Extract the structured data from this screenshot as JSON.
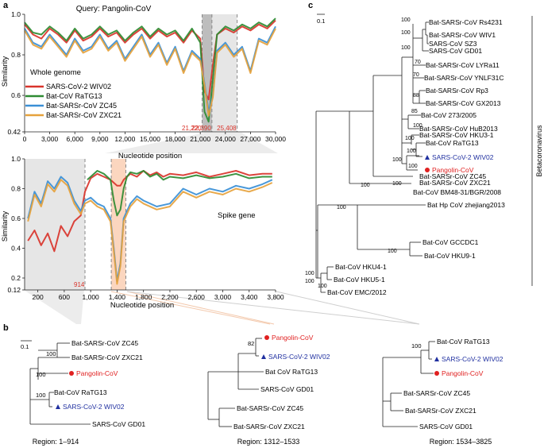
{
  "panel_labels": {
    "a": "a",
    "b": "b",
    "c": "c"
  },
  "colors": {
    "sars2": "#d9342b",
    "ratg13": "#2e8b32",
    "zc45": "#3a8fd6",
    "zxc21": "#e6a23c",
    "marker_red": "#e02020",
    "marker_blue": "#2030a0",
    "region_red": "#d9342b",
    "shade_grey": "#e6e6e6",
    "shade_dark": "#bdbdbd",
    "shade_orange": "#fbd6bf"
  },
  "chart_data": [
    {
      "type": "line",
      "title": "Query: Pangolin-CoV",
      "subtitle": "Whole genome",
      "xlabel": "Nucleotide position",
      "ylabel": "Similarity",
      "xlim": [
        0,
        30000
      ],
      "ylim": [
        0.42,
        1.0
      ],
      "xticks": [
        0,
        3000,
        6000,
        9000,
        12000,
        15000,
        18000,
        21000,
        24000,
        27000,
        30000
      ],
      "xtick_labels": [
        "0",
        "3,000",
        "6,000",
        "9,000",
        "12,000",
        "15,000",
        "18,000",
        "21,000",
        "24,000",
        "27,000",
        "30,000"
      ],
      "yticks": [
        0.42,
        0.6,
        0.8,
        1.0
      ],
      "ytick_labels": [
        "0.42",
        "0.6",
        "0.8",
        "1.0"
      ],
      "region_markers": [
        21220,
        22390,
        25408
      ],
      "region_marker_labels": [
        "21,220",
        "22,390",
        "25,408"
      ],
      "series": [
        {
          "name": "SARS-CoV-2 WIV02",
          "color_key": "sars2",
          "x": [
            0,
            1000,
            2000,
            3000,
            4000,
            5000,
            6000,
            7000,
            8000,
            9000,
            10000,
            11000,
            12000,
            13000,
            14000,
            15000,
            16000,
            17000,
            18000,
            19000,
            20000,
            21000,
            21500,
            22000,
            22500,
            23000,
            24000,
            25000,
            26000,
            27000,
            28000,
            29000,
            30000
          ],
          "values": [
            0.95,
            0.9,
            0.88,
            0.93,
            0.9,
            0.86,
            0.92,
            0.87,
            0.89,
            0.93,
            0.89,
            0.91,
            0.86,
            0.9,
            0.93,
            0.88,
            0.92,
            0.89,
            0.91,
            0.86,
            0.92,
            0.88,
            0.62,
            0.58,
            0.75,
            0.9,
            0.93,
            0.91,
            0.94,
            0.92,
            0.95,
            0.93,
            0.97
          ]
        },
        {
          "name": "Bat-CoV RaTG13",
          "color_key": "ratg13",
          "x": [
            0,
            1000,
            2000,
            3000,
            4000,
            5000,
            6000,
            7000,
            8000,
            9000,
            10000,
            11000,
            12000,
            13000,
            14000,
            15000,
            16000,
            17000,
            18000,
            19000,
            20000,
            21000,
            21500,
            22000,
            22500,
            23000,
            24000,
            25000,
            26000,
            27000,
            28000,
            29000,
            30000
          ],
          "values": [
            0.96,
            0.91,
            0.9,
            0.94,
            0.91,
            0.87,
            0.93,
            0.88,
            0.9,
            0.94,
            0.9,
            0.92,
            0.87,
            0.91,
            0.94,
            0.89,
            0.93,
            0.9,
            0.92,
            0.87,
            0.93,
            0.86,
            0.52,
            0.47,
            0.68,
            0.9,
            0.94,
            0.92,
            0.95,
            0.93,
            0.96,
            0.94,
            0.98
          ]
        },
        {
          "name": "Bat-SARSr-CoV ZC45",
          "color_key": "zc45",
          "x": [
            0,
            1000,
            2000,
            3000,
            4000,
            5000,
            6000,
            7000,
            8000,
            9000,
            10000,
            11000,
            12000,
            13000,
            14000,
            15000,
            16000,
            17000,
            18000,
            19000,
            20000,
            21000,
            21500,
            22000,
            22500,
            23000,
            24000,
            25000,
            26000,
            27000,
            28000,
            29000,
            30000
          ],
          "values": [
            0.93,
            0.86,
            0.84,
            0.9,
            0.85,
            0.8,
            0.88,
            0.82,
            0.84,
            0.9,
            0.83,
            0.87,
            0.78,
            0.84,
            0.9,
            0.8,
            0.86,
            0.76,
            0.84,
            0.72,
            0.82,
            0.78,
            0.66,
            0.52,
            0.6,
            0.82,
            0.86,
            0.8,
            0.84,
            0.72,
            0.88,
            0.86,
            0.94
          ]
        },
        {
          "name": "Bat-SARSr-CoV ZXC21",
          "color_key": "zxc21",
          "x": [
            0,
            1000,
            2000,
            3000,
            4000,
            5000,
            6000,
            7000,
            8000,
            9000,
            10000,
            11000,
            12000,
            13000,
            14000,
            15000,
            16000,
            17000,
            18000,
            19000,
            20000,
            21000,
            21500,
            22000,
            22500,
            23000,
            24000,
            25000,
            26000,
            27000,
            28000,
            29000,
            30000
          ],
          "values": [
            0.92,
            0.85,
            0.83,
            0.89,
            0.84,
            0.79,
            0.87,
            0.81,
            0.83,
            0.89,
            0.82,
            0.86,
            0.77,
            0.83,
            0.89,
            0.79,
            0.85,
            0.75,
            0.83,
            0.71,
            0.81,
            0.77,
            0.65,
            0.5,
            0.59,
            0.81,
            0.85,
            0.79,
            0.83,
            0.71,
            0.87,
            0.85,
            0.93
          ]
        }
      ]
    },
    {
      "type": "line",
      "subtitle": "Spike gene",
      "xlabel": "Nucleotide position",
      "ylabel": "Similarity",
      "xlim": [
        0,
        3800
      ],
      "ylim": [
        0.12,
        1.0
      ],
      "xticks": [
        200,
        600,
        1000,
        1400,
        1800,
        2200,
        2600,
        3000,
        3400,
        3800
      ],
      "xtick_labels": [
        "200",
        "600",
        "1,000",
        "1,400",
        "1,800",
        "2,200",
        "2,600",
        "3,000",
        "3,400",
        "3,800"
      ],
      "yticks": [
        0.12,
        0.2,
        0.4,
        0.6,
        0.8,
        1.0
      ],
      "ytick_labels": [
        "0.12",
        "0.2",
        "0.4",
        "0.6",
        "0.8",
        "1.0"
      ],
      "region_markers": [
        914,
        1312,
        1533
      ],
      "region_marker_labels": [
        "914"
      ],
      "series": [
        {
          "name": "SARS-CoV-2 WIV02",
          "color_key": "sars2",
          "x": [
            50,
            150,
            250,
            350,
            450,
            550,
            650,
            750,
            850,
            914,
            1000,
            1100,
            1200,
            1300,
            1400,
            1450,
            1500,
            1600,
            1700,
            1800,
            1900,
            2000,
            2100,
            2200,
            2400,
            2600,
            2800,
            3000,
            3200,
            3400,
            3600,
            3750
          ],
          "values": [
            0.45,
            0.52,
            0.42,
            0.5,
            0.38,
            0.55,
            0.48,
            0.58,
            0.62,
            0.78,
            0.87,
            0.9,
            0.88,
            0.86,
            0.82,
            0.82,
            0.86,
            0.9,
            0.88,
            0.92,
            0.89,
            0.91,
            0.88,
            0.9,
            0.89,
            0.91,
            0.88,
            0.9,
            0.92,
            0.89,
            0.9,
            0.9
          ]
        },
        {
          "name": "Bat-CoV RaTG13",
          "color_key": "ratg13",
          "x": [
            950,
            1000,
            1100,
            1200,
            1300,
            1350,
            1400,
            1450,
            1500,
            1550,
            1600,
            1700,
            1800,
            1900,
            2000,
            2100,
            2200,
            2400,
            2600,
            2800,
            3000,
            3200,
            3400,
            3600,
            3750
          ],
          "values": [
            0.86,
            0.88,
            0.92,
            0.9,
            0.86,
            0.72,
            0.62,
            0.66,
            0.8,
            0.88,
            0.91,
            0.9,
            0.92,
            0.88,
            0.9,
            0.86,
            0.88,
            0.87,
            0.89,
            0.87,
            0.88,
            0.9,
            0.87,
            0.88,
            0.88
          ]
        },
        {
          "name": "Bat-SARSr-CoV ZC45",
          "color_key": "zc45",
          "x": [
            50,
            150,
            250,
            350,
            450,
            550,
            650,
            750,
            850,
            914,
            1000,
            1100,
            1200,
            1300,
            1350,
            1400,
            1450,
            1500,
            1600,
            1700,
            1800,
            2000,
            2200,
            2400,
            2600,
            2800,
            3000,
            3200,
            3400,
            3600,
            3750
          ],
          "values": [
            0.6,
            0.78,
            0.7,
            0.85,
            0.8,
            0.88,
            0.84,
            0.72,
            0.65,
            0.72,
            0.74,
            0.7,
            0.68,
            0.6,
            0.4,
            0.18,
            0.3,
            0.6,
            0.7,
            0.75,
            0.72,
            0.68,
            0.7,
            0.8,
            0.76,
            0.8,
            0.78,
            0.82,
            0.8,
            0.83,
            0.86
          ]
        },
        {
          "name": "Bat-SARSr-CoV ZXC21",
          "color_key": "zxc21",
          "x": [
            50,
            150,
            250,
            350,
            450,
            550,
            650,
            750,
            850,
            914,
            1000,
            1100,
            1200,
            1300,
            1350,
            1400,
            1450,
            1500,
            1600,
            1700,
            1800,
            2000,
            2200,
            2400,
            2600,
            2800,
            3000,
            3200,
            3400,
            3600,
            3750
          ],
          "values": [
            0.58,
            0.76,
            0.68,
            0.83,
            0.78,
            0.86,
            0.82,
            0.7,
            0.63,
            0.7,
            0.72,
            0.68,
            0.66,
            0.58,
            0.38,
            0.16,
            0.28,
            0.58,
            0.68,
            0.73,
            0.7,
            0.66,
            0.68,
            0.78,
            0.74,
            0.78,
            0.76,
            0.8,
            0.78,
            0.81,
            0.84
          ]
        }
      ]
    }
  ],
  "legend": [
    {
      "label": "SARS-CoV-2 WIV02",
      "color_key": "sars2"
    },
    {
      "label": "Bat-CoV RaTG13",
      "color_key": "ratg13"
    },
    {
      "label": "Bat-SARSr-CoV ZC45",
      "color_key": "zc45"
    },
    {
      "label": "Bat-SARSr-CoV ZXC21",
      "color_key": "zxc21"
    }
  ],
  "trees_b": [
    {
      "region": "Region: 1–914",
      "scale": "0.1",
      "taxa": [
        "Bat-SARSr-CoV ZC45",
        "Bat-SARSr-CoV ZXC21",
        "Pangolin-CoV",
        "Bat-CoV RaTG13",
        "SARS-CoV-2 WIV02",
        "SARS-CoV GD01"
      ],
      "bootstraps": [
        "100",
        "100",
        "100"
      ]
    },
    {
      "region": "Region: 1312–1533",
      "taxa": [
        "Pangolin-CoV",
        "SARS-CoV-2 WIV02",
        "Bat CoV RaTG13",
        "SARS-CoV GD01",
        "Bat-SARSr-CoV ZC45",
        "Bat-SARSr-CoV ZXC21"
      ],
      "bootstraps": [
        "82"
      ]
    },
    {
      "region": "Region: 1534–3825",
      "taxa": [
        "Bat-CoV RaTG13",
        "SARS-CoV-2 WIV02",
        "Pangolin-CoV",
        "Bat-SARSr-CoV ZC45",
        "Bat-SARSr-CoV ZXC21",
        "SARS-CoV GD01"
      ],
      "bootstraps": [
        "100"
      ]
    }
  ],
  "tree_c": {
    "scale": "0.1",
    "clade_label": "Betacoronavirus",
    "taxa": [
      "Bat-SARSr-CoV Rs4231",
      "Bat-SARSr-CoV WIV1",
      "SARS-CoV SZ3",
      "SARS-CoV GD01",
      "Bat-SARSr-CoV LYRa11",
      "Bat-SARSr-CoV YNLF31C",
      "Bat-SARSr-CoV Rp3",
      "Bat-SARSr-CoV GX2013",
      "Bat-CoV 273/2005",
      "Bat-SARSr-CoV HuB2013",
      "Bat-SARSr-CoV HKU3-1",
      "Bat-CoV RaTG13",
      "SARS-CoV-2 WIV02",
      "Pangolin-CoV",
      "Bat-SARSr-CoV ZC45",
      "Bat-SARSr-CoV ZXC21",
      "Bat-CoV BM48-31/BGR/2008",
      "Bat Hp CoV zhejiang2013",
      "Bat-CoV GCCDC1",
      "Bat-CoV HKU9-1",
      "Bat-CoV HKU4-1",
      "Bat-CoV HKU5-1",
      "Bat-CoV EMC/2012"
    ],
    "bootstraps": [
      "100",
      "100",
      "100",
      "70",
      "70",
      "88",
      "85",
      "100",
      "100",
      "100",
      "100",
      "100",
      "100",
      "100",
      "100",
      "100",
      "100",
      "100",
      "100"
    ]
  }
}
